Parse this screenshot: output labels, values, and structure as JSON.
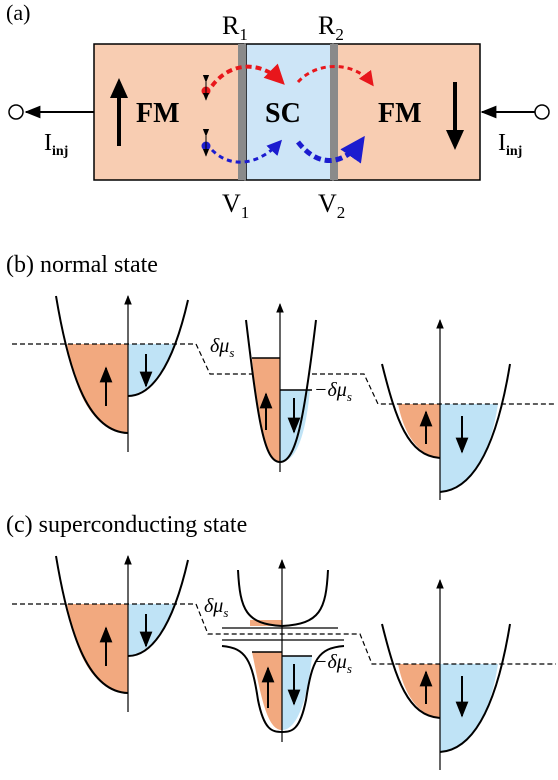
{
  "colors": {
    "fm_fill": "#f8cdb2",
    "sc_fill": "#cde5f7",
    "up_band": "#f2a97f",
    "down_band": "#bfe3f6",
    "red": "#e8161b",
    "blue": "#1c1ccf",
    "barrier": "#8a8a8a",
    "line": "#000000"
  },
  "panel_a": {
    "label": "(a)",
    "fm_left": "FM",
    "sc": "SC",
    "fm_right": "FM",
    "r1_base": "R",
    "r1_sub": "1",
    "r2_base": "R",
    "r2_sub": "2",
    "v1_base": "V",
    "v1_sub": "1",
    "v2_base": "V",
    "v2_sub": "2",
    "i_left_base": "I",
    "i_left_sub": "inj",
    "i_right_base": "I",
    "i_right_sub": "inj",
    "spin_left": "up-arrow-icon",
    "spin_right": "down-arrow-icon"
  },
  "panel_b": {
    "label": "(b) normal state",
    "dmu_top_sym": "δμ",
    "dmu_top_sub": "s",
    "dmu_bot_sym": "−δμ",
    "dmu_bot_sub": "s"
  },
  "panel_c": {
    "label": "(c) superconducting state",
    "dmu_top_sym": "δμ",
    "dmu_top_sub": "s",
    "dmu_bot_sym": "−δμ",
    "dmu_bot_sub": "s"
  }
}
